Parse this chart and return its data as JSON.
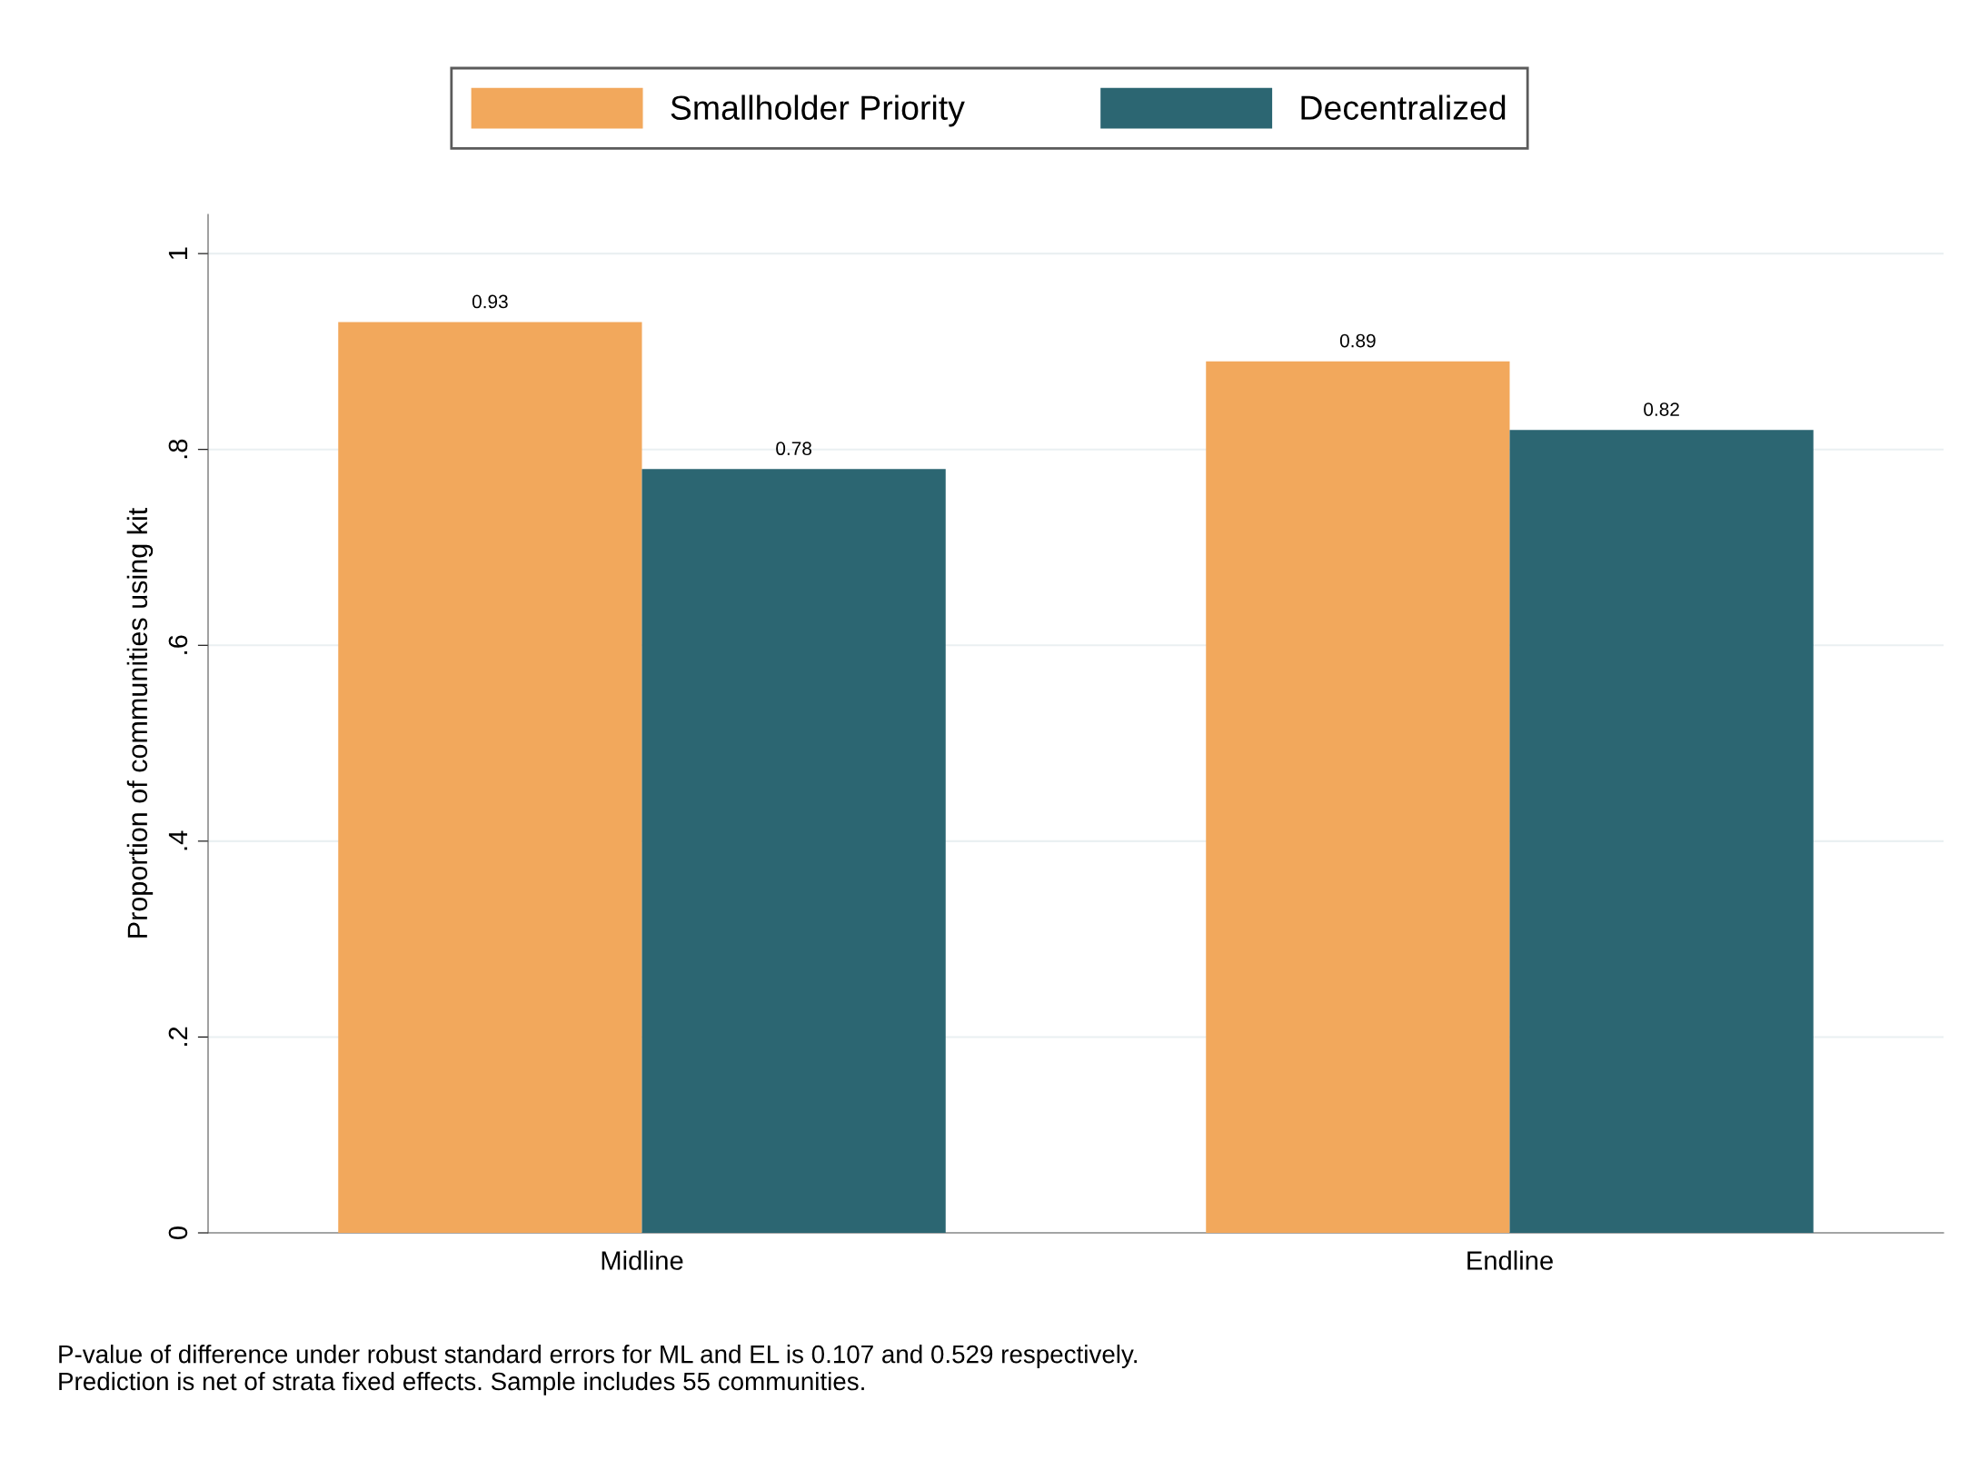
{
  "chart_data": {
    "type": "bar",
    "ylabel": "Proportion of communities using kit",
    "categories": [
      "Midline",
      "Endline"
    ],
    "ylim": [
      0,
      1.04
    ],
    "yticks": [
      0,
      {
        "value": 0.2,
        "label": ".2"
      },
      {
        "value": 0.4,
        "label": ".4"
      },
      {
        "value": 0.6,
        "label": ".6"
      },
      {
        "value": 0.8,
        "label": ".8"
      },
      1
    ],
    "grid": "y",
    "data_labels": true,
    "legend": "top",
    "series": [
      {
        "name": "Smallholder Priority",
        "color": "#f2a85c",
        "values": [
          0.93,
          0.89
        ]
      },
      {
        "name": "Decentralized",
        "color": "#2c6672",
        "values": [
          0.78,
          0.82
        ]
      }
    ],
    "annotations": [
      "P-value of difference under robust standard errors for ML and EL is 0.107 and 0.529 respectively.\nPrediction is net of strata fixed effects. Sample includes 55 communities."
    ]
  }
}
